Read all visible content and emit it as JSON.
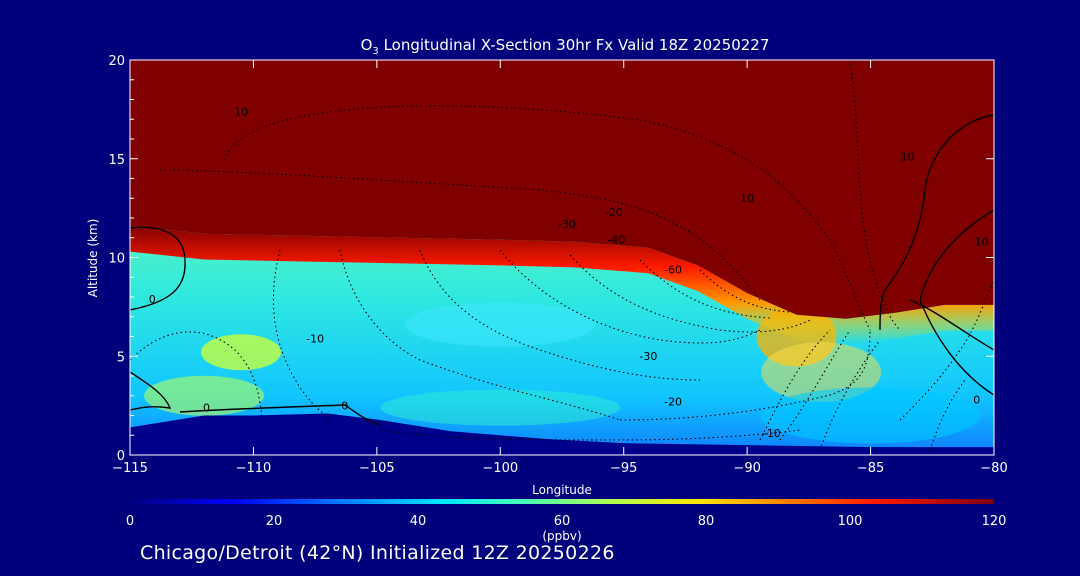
{
  "chart_data": {
    "type": "heatmap",
    "title": "O3 Longitudinal X-Section 30hr  Fx Valid 18Z 20250227",
    "title_parts": {
      "prefix": "O",
      "sub": "3",
      "rest": " Longitudinal X-Section 30hr  Fx Valid 18Z 20250227"
    },
    "xlabel": "Longitude",
    "ylabel": "Altitude (km)",
    "xlim": [
      -115,
      -80
    ],
    "ylim": [
      0,
      20
    ],
    "x_ticks": [
      -115,
      -110,
      -105,
      -100,
      -95,
      -90,
      -85,
      -80
    ],
    "x_tick_labels": [
      "−115",
      "−110",
      "−105",
      "−100",
      "−95",
      "−90",
      "−85",
      "−80"
    ],
    "y_ticks": [
      0,
      5,
      10,
      15,
      20
    ],
    "y_tick_labels": [
      "0",
      "5",
      "10",
      "15",
      "20"
    ],
    "colorbar": {
      "label": "(ppbv)",
      "range": [
        0,
        120
      ],
      "ticks": [
        0,
        20,
        40,
        60,
        80,
        100,
        120
      ],
      "tick_labels": [
        "0",
        "20",
        "40",
        "60",
        "80",
        "100",
        "120"
      ]
    },
    "field": {
      "tropopause_km": [
        [
          -115,
          11.6
        ],
        [
          -112,
          11.2
        ],
        [
          -108,
          11.1
        ],
        [
          -104,
          11.0
        ],
        [
          -100,
          10.9
        ],
        [
          -97,
          10.8
        ],
        [
          -94,
          10.5
        ],
        [
          -92,
          9.6
        ],
        [
          -90,
          8.2
        ],
        [
          -88,
          7.1
        ],
        [
          -86,
          6.9
        ],
        [
          -84,
          7.2
        ],
        [
          -82,
          7.6
        ],
        [
          -80,
          7.6
        ]
      ],
      "surface_km": [
        [
          -115,
          1.4
        ],
        [
          -112,
          2.0
        ],
        [
          -110,
          2.0
        ],
        [
          -107,
          2.1
        ],
        [
          -105,
          1.8
        ],
        [
          -102,
          1.2
        ],
        [
          -98,
          0.8
        ],
        [
          -95,
          0.6
        ],
        [
          -90,
          0.5
        ],
        [
          -85,
          0.4
        ],
        [
          -80,
          0.4
        ]
      ],
      "max_ppbv": 120,
      "surface_ppbv": 15
    },
    "contour_labels": [
      {
        "text": "10",
        "lon": -110.5,
        "alt": 17.2
      },
      {
        "text": "-20",
        "lon": -95.4,
        "alt": 12.1
      },
      {
        "text": "-30",
        "lon": -97.3,
        "alt": 11.5
      },
      {
        "text": "-40",
        "lon": -95.3,
        "alt": 10.7
      },
      {
        "text": "10",
        "lon": -90.0,
        "alt": 12.8
      },
      {
        "text": "10",
        "lon": -83.5,
        "alt": 14.9
      },
      {
        "text": "10",
        "lon": -80.5,
        "alt": 10.6
      },
      {
        "text": "-60",
        "lon": -93.0,
        "alt": 9.2
      },
      {
        "text": "0",
        "lon": -114.1,
        "alt": 7.7
      },
      {
        "text": "-10",
        "lon": -107.5,
        "alt": 5.7
      },
      {
        "text": "-30",
        "lon": -94.0,
        "alt": 4.8
      },
      {
        "text": "-20",
        "lon": -93.0,
        "alt": 2.5
      },
      {
        "text": "0",
        "lon": -106.3,
        "alt": 2.3
      },
      {
        "text": "0",
        "lon": -111.9,
        "alt": 2.2
      },
      {
        "text": "-10",
        "lon": -89.0,
        "alt": 0.9
      },
      {
        "text": "0",
        "lon": -80.7,
        "alt": 2.6
      }
    ]
  },
  "footer": "Chicago/Detroit (42°N) Initialized 12Z 20250226",
  "colors": {
    "background": "#00007c",
    "text": "#ffffff",
    "stratosphere": "#800000",
    "colormap": [
      "#00007f",
      "#0000ff",
      "#007fff",
      "#00e5ff",
      "#4cffb2",
      "#b2ff4c",
      "#ffe500",
      "#ff7f00",
      "#ff1a00",
      "#800000"
    ]
  }
}
